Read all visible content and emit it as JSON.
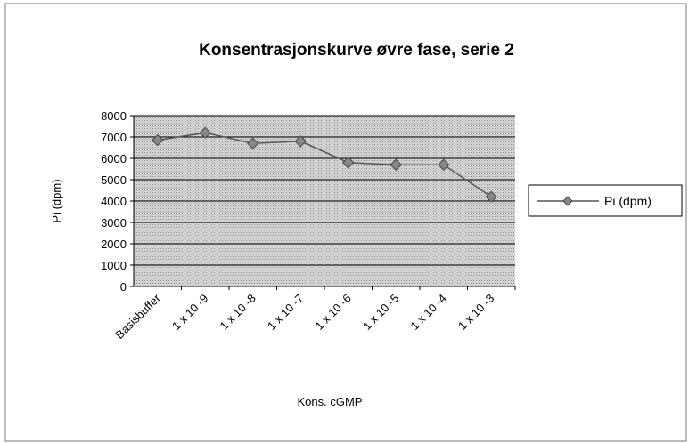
{
  "chart_data": {
    "type": "line",
    "title": "Konsentrasjonskurve øvre fase, serie 2",
    "xlabel": "Kons. cGMP",
    "ylabel": "Pi (dpm)",
    "categories": [
      "Basisbuffer",
      "1 x 10 -9",
      "1 x 10 -8",
      "1 x 10 -7",
      "1 x 10 -6",
      "1 x 10 -5",
      "1 x 10 -4",
      "1 x 10 -3"
    ],
    "series": [
      {
        "name": "Pi (dpm)",
        "color": "#555555",
        "values": [
          6850,
          7200,
          6700,
          6800,
          5800,
          5700,
          5700,
          4200
        ]
      }
    ],
    "ylim": [
      0,
      8000
    ],
    "yticks": [
      0,
      1000,
      2000,
      3000,
      4000,
      5000,
      6000,
      7000,
      8000
    ],
    "grid": true,
    "legend": "right"
  }
}
